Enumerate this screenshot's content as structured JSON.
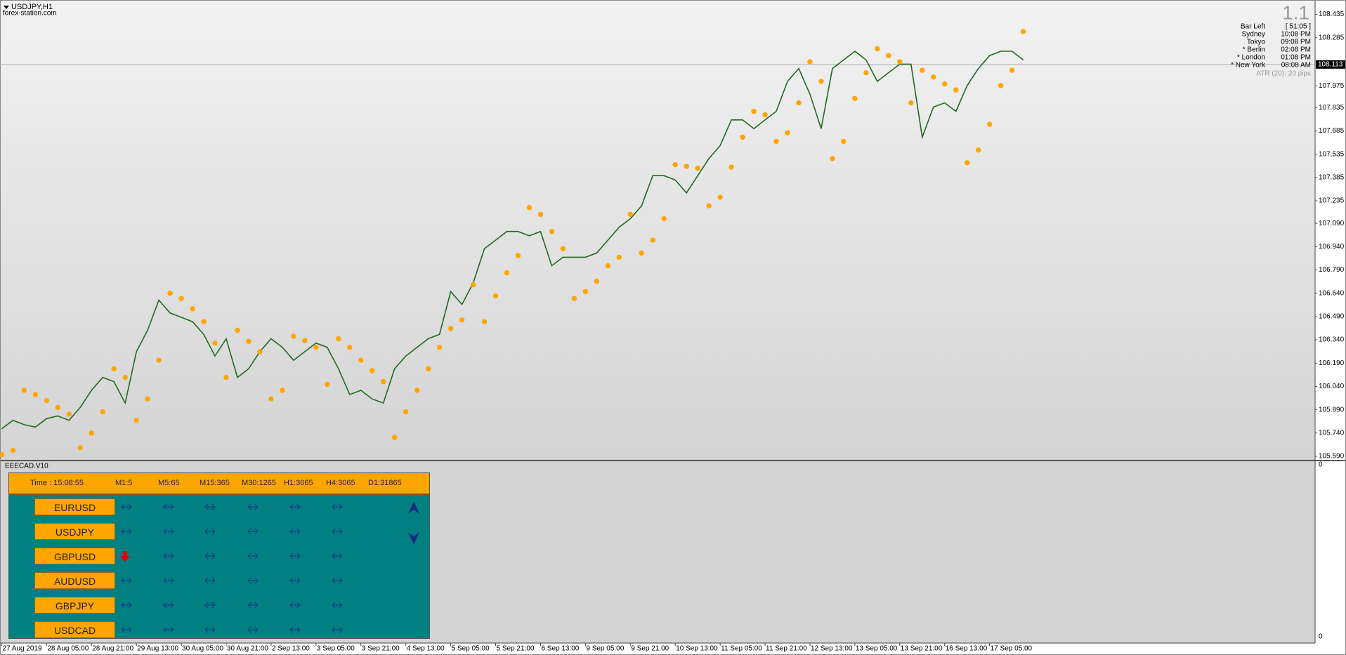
{
  "chart_data": {
    "type": "line",
    "title": "USDJPY,H1",
    "categories": [
      "27 Aug 2019",
      null,
      null,
      null,
      "28 Aug 05:00",
      null,
      null,
      null,
      "28 Aug 21:00",
      null,
      null,
      null,
      "29 Aug 13:00",
      null,
      null,
      null,
      "30 Aug 05:00",
      null,
      null,
      null,
      "30 Aug 21:00",
      null,
      null,
      null,
      "2 Sep 13:00",
      null,
      null,
      null,
      "3 Sep 05:00",
      null,
      null,
      null,
      "3 Sep 21:00",
      null,
      null,
      null,
      "4 Sep 13:00",
      null,
      null,
      null,
      "5 Sep 05:00",
      null,
      null,
      null,
      "5 Sep 21:00",
      null,
      null,
      null,
      "6 Sep 13:00",
      null,
      null,
      null,
      "9 Sep 05:00",
      null,
      null,
      null,
      "9 Sep 21:00",
      null,
      null,
      null,
      "10 Sep 13:00",
      null,
      null,
      null,
      "11 Sep 05:00",
      null,
      null,
      null,
      "11 Sep 21:00",
      null,
      null,
      null,
      "12 Sep 13:00",
      null,
      null,
      null,
      "13 Sep 05:00",
      null,
      null,
      null,
      "13 Sep 21:00",
      null,
      null,
      null,
      "16 Sep 13:00",
      null,
      null,
      null,
      "17 Sep 05:00",
      null,
      null,
      null
    ],
    "series": [
      {
        "color": "#1e6b1e",
        "values": [
          105.767,
          105.822,
          105.794,
          105.778,
          105.833,
          105.85,
          105.822,
          105.905,
          106.015,
          106.098,
          106.071,
          105.933,
          106.264,
          106.402,
          106.596,
          106.513,
          106.485,
          106.457,
          106.375,
          106.236,
          106.347,
          106.098,
          106.154,
          106.264,
          106.347,
          106.292,
          106.209,
          106.264,
          106.319,
          106.292,
          106.154,
          105.988,
          106.015,
          105.96,
          105.933,
          106.154,
          106.236,
          106.292,
          106.347,
          106.375,
          106.651,
          106.568,
          106.706,
          106.927,
          106.982,
          107.038,
          107.038,
          107.01,
          107.038,
          106.817,
          106.872,
          106.872,
          106.872,
          106.899,
          106.982,
          107.065,
          107.12,
          107.203,
          107.397,
          107.397,
          107.369,
          107.286,
          107.397,
          107.507,
          107.59,
          107.756,
          107.756,
          107.7,
          107.756,
          107.811,
          108.004,
          108.087,
          107.921,
          107.7,
          108.087,
          108.142,
          108.198,
          108.142,
          108.004,
          108.06,
          108.115,
          108.115,
          107.645,
          107.839,
          107.866,
          107.811,
          107.977,
          108.087,
          108.17,
          108.198,
          108.198,
          108.142
        ]
      },
      {
        "color": "#ffa500",
        "marker": "dot",
        "values": [
          105.601,
          105.629,
          106.015,
          105.988,
          105.949,
          105.905,
          105.861,
          105.645,
          105.739,
          105.877,
          106.154,
          106.098,
          105.822,
          105.96,
          106.209,
          106.64,
          106.607,
          106.54,
          106.457,
          106.319,
          106.098,
          106.402,
          106.33,
          106.264,
          105.96,
          106.015,
          106.363,
          106.336,
          106.292,
          106.054,
          106.347,
          106.292,
          106.209,
          106.142,
          106.071,
          105.712,
          105.877,
          106.015,
          106.154,
          106.292,
          106.413,
          106.468,
          106.695,
          106.457,
          106.623,
          106.772,
          106.883,
          107.192,
          107.148,
          107.038,
          106.927,
          106.607,
          106.651,
          106.717,
          106.817,
          106.872,
          107.148,
          106.899,
          106.982,
          107.12,
          107.468,
          107.457,
          107.446,
          107.203,
          107.259,
          107.452,
          107.645,
          107.811,
          107.789,
          107.618,
          107.673,
          107.866,
          108.131,
          108.004,
          107.507,
          107.618,
          107.894,
          108.06,
          108.214,
          108.17,
          108.131,
          107.866,
          108.076,
          108.032,
          107.988,
          107.949,
          107.48,
          107.562,
          107.728,
          107.977,
          108.076,
          108.325
        ]
      }
    ],
    "ylim": [
      105.572,
      108.51
    ],
    "yticks": [
      {
        "value": 105.59,
        "label": "105.590"
      },
      {
        "value": 105.74,
        "label": "105.740"
      },
      {
        "value": 105.89,
        "label": "105.890"
      },
      {
        "value": 106.04,
        "label": "106.040"
      },
      {
        "value": 106.19,
        "label": "106.190"
      },
      {
        "value": 106.34,
        "label": "106.340"
      },
      {
        "value": 106.49,
        "label": "106.490"
      },
      {
        "value": 106.64,
        "label": "106.640"
      },
      {
        "value": 106.79,
        "label": "106.790"
      },
      {
        "value": 106.94,
        "label": "106.940"
      },
      {
        "value": 107.09,
        "label": "107.090"
      },
      107.235,
      107.385,
      107.535,
      107.685,
      107.835,
      107.975,
      108.285,
      108.435
    ],
    "current_price": 108.113
  },
  "watermark": "forex-station.com",
  "info_panel": {
    "spread": "1.1",
    "rows": [
      {
        "label": "Bar Left",
        "value": "[ 51:05 ]",
        "color": "#9a9a9a"
      },
      {
        "label": "Sydney",
        "value": "10:08 PM",
        "color": "#9a9a9a"
      },
      {
        "label": "Tokyo",
        "value": "09:08 PM",
        "color": "#9a9a9a"
      },
      {
        "label": "* Berlin",
        "value": "02:08 PM",
        "color": "#e00000"
      },
      {
        "label": "* London",
        "value": "01:08 PM",
        "color": "#e00000"
      },
      {
        "label": "* New York",
        "value": "08:08 AM",
        "color": "#e00000"
      }
    ],
    "atr": "ATR (20): 20 pips"
  },
  "indicator": {
    "name": "EEECAD.V10",
    "scale_labels": [
      "0",
      "0"
    ]
  },
  "dashboard": {
    "time": "Time : 15:08:55",
    "timeframes": [
      "M1:5",
      "M5:65",
      "M15:365",
      "M30:1265",
      "H1:3065",
      "H4:3065",
      "D1:31865"
    ],
    "rows": [
      {
        "symbol": "EURUSD"
      },
      {
        "symbol": "USDJPY"
      },
      {
        "symbol": "GBPUSD"
      },
      {
        "symbol": "AUDUSD"
      },
      {
        "symbol": "GBPJPY"
      },
      {
        "symbol": "USDCAD"
      }
    ]
  }
}
